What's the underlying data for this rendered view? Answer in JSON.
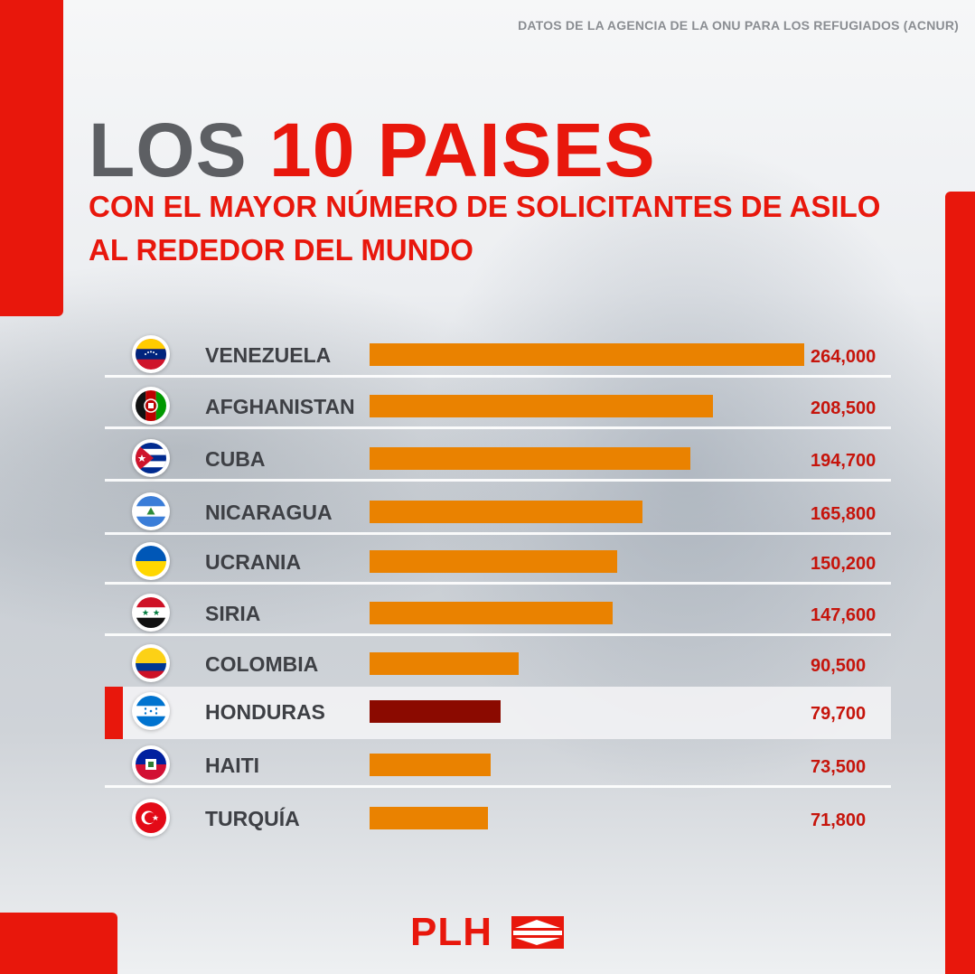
{
  "source": "DATOS DE LA AGENCIA DE LA ONU PARA LOS REFUGIADOS (ACNUR)",
  "title": {
    "part1": "LOS",
    "part2": "10 PAISES",
    "subtitle_line1": "CON EL MAYOR NÚMERO DE SOLICITANTES DE ASILO",
    "subtitle_line2": "AL REDEDOR DEL MUNDO"
  },
  "logo": {
    "text": "PLH"
  },
  "colors": {
    "accent": "#e8170c",
    "bar": "#ea8200",
    "bar_highlight": "#8b0a00",
    "value_text": "#c6140b"
  },
  "chart_data": {
    "type": "bar",
    "orientation": "horizontal",
    "categories": [
      "VENEZUELA",
      "AFGHANISTAN",
      "CUBA",
      "NICARAGUA",
      "UCRANIA",
      "SIRIA",
      "COLOMBIA",
      "HONDURAS",
      "HAITI",
      "TURQUÍA"
    ],
    "values": [
      264000,
      208500,
      194700,
      165800,
      150200,
      147600,
      90500,
      79700,
      73500,
      71800
    ],
    "value_labels": [
      "264,000",
      "208,500",
      "194,700",
      "165,800",
      "150,200",
      "147,600",
      "90,500",
      "79,700",
      "73,500",
      "71,800"
    ],
    "flags": [
      "venezuela-flag-icon",
      "afghanistan-flag-icon",
      "cuba-flag-icon",
      "nicaragua-flag-icon",
      "ukraine-flag-icon",
      "syria-flag-icon",
      "colombia-flag-icon",
      "honduras-flag-icon",
      "haiti-flag-icon",
      "turkey-flag-icon"
    ],
    "highlighted": "HONDURAS",
    "xlim": [
      0,
      264000
    ],
    "grid": false
  }
}
